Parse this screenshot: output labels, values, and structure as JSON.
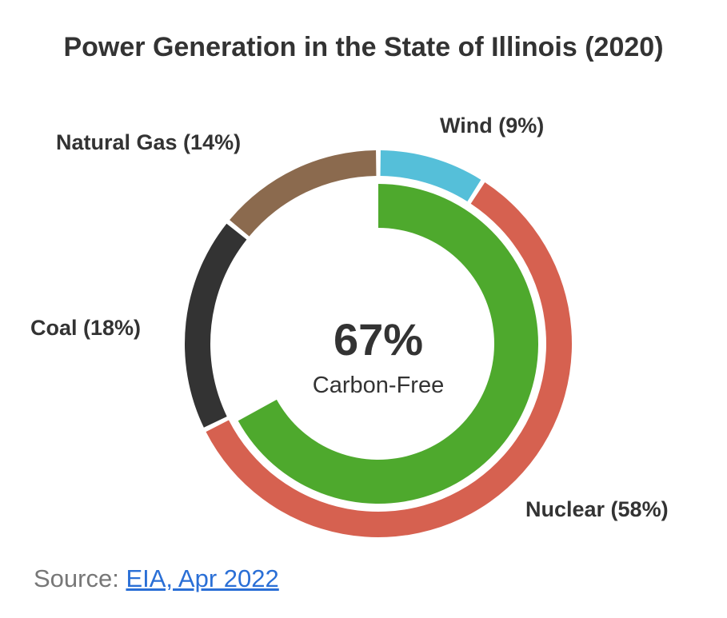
{
  "chart_data": {
    "type": "pie",
    "title": "Power Generation in the State of Illinois (2020)",
    "outer_ring": [
      {
        "name": "Wind",
        "value": 9,
        "label": "Wind (9%)",
        "color": "#55bfd9"
      },
      {
        "name": "Nuclear",
        "value": 58,
        "label": "Nuclear (58%)",
        "color": "#d66150"
      },
      {
        "name": "Coal",
        "value": 18,
        "label": "Coal (18%)",
        "color": "#333333"
      },
      {
        "name": "Natural Gas",
        "value": 14,
        "label": "Natural Gas (14%)",
        "color": "#8b6a4e"
      }
    ],
    "inner_ring": {
      "value": 67,
      "color": "#4ea92d"
    },
    "center": {
      "value": "67%",
      "label": "Carbon-Free"
    }
  },
  "source": {
    "prefix": "Source: ",
    "link_text": "EIA, Apr 2022",
    "link_color": "#2a6fd6"
  }
}
